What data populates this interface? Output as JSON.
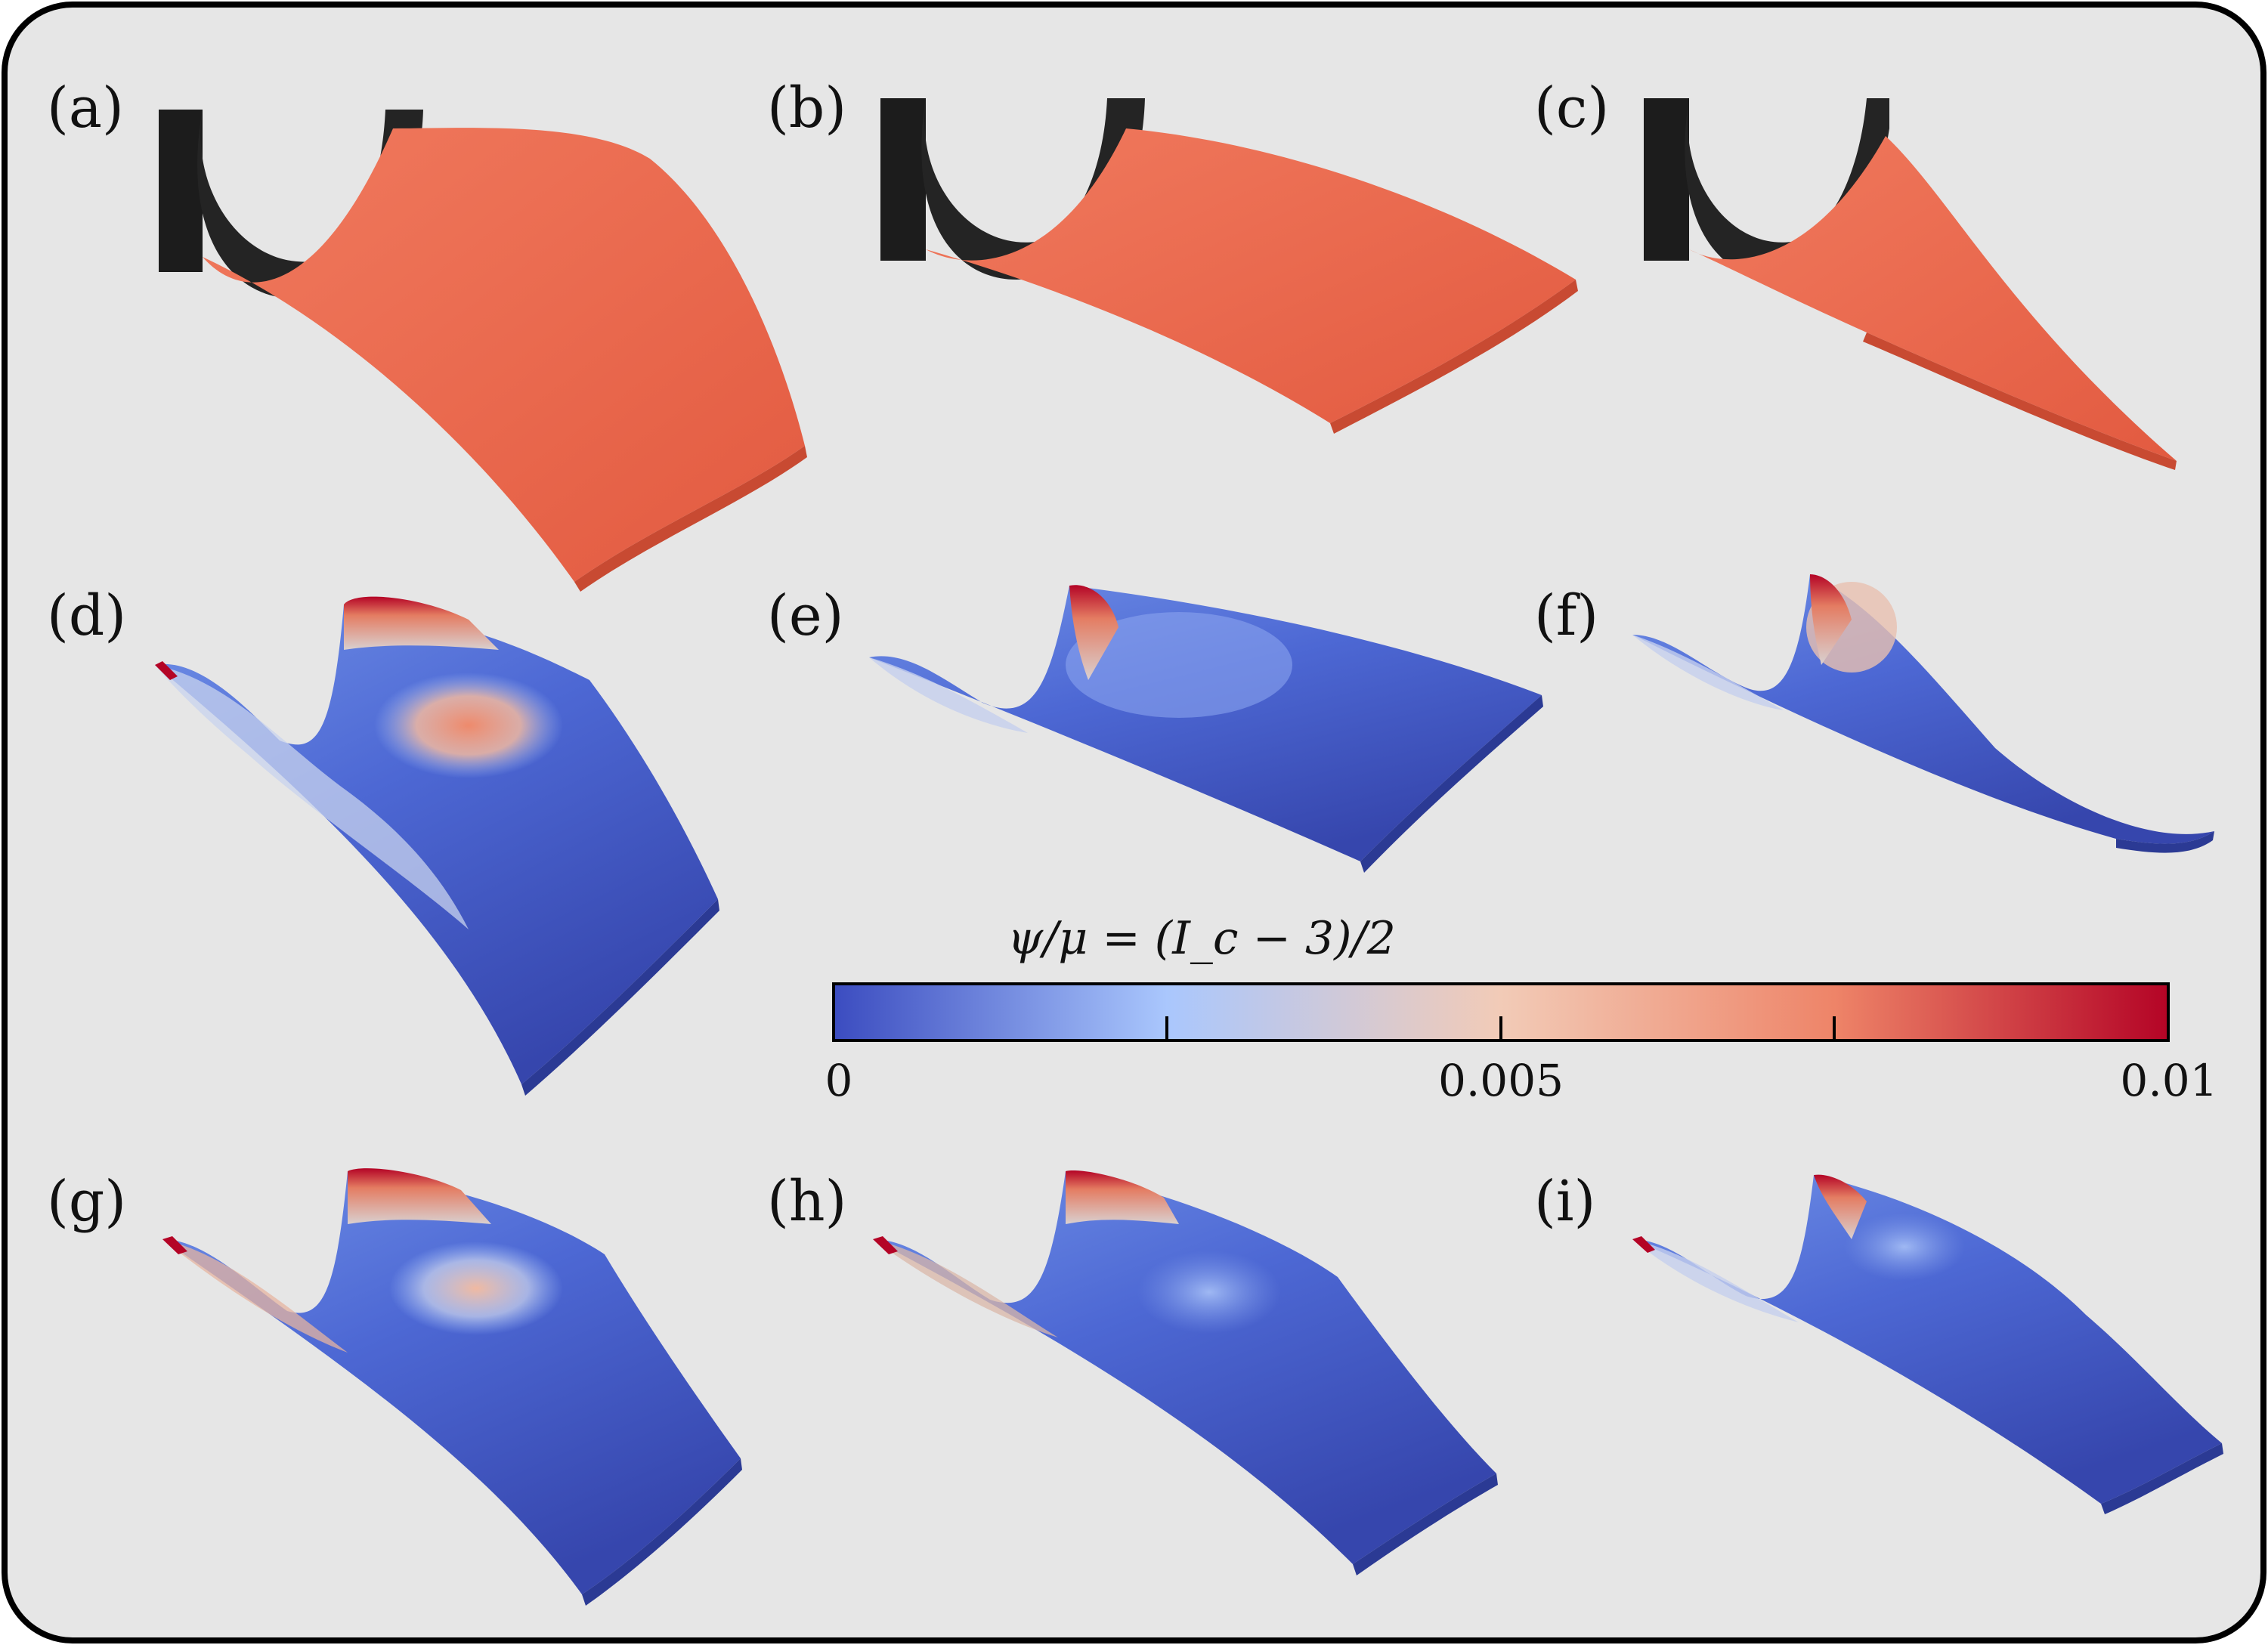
{
  "figure": {
    "panel_labels": [
      "(a)",
      "(b)",
      "(c)",
      "(d)",
      "(e)",
      "(f)",
      "(g)",
      "(h)",
      "(i)"
    ],
    "colorbar": {
      "title": "ψ/μ = (I_c − 3)/2",
      "ticks": [
        "0",
        "0.005",
        "0.01"
      ],
      "range": [
        0,
        0.01
      ],
      "colors": [
        "#3b4cc0",
        "#aac7fd",
        "#f7b89c",
        "#b40426"
      ]
    },
    "colors": {
      "background": "#e6e6e6",
      "border": "#000000",
      "silicone_sheet": "#e8644a",
      "clamp": "#1c1c1c"
    }
  }
}
